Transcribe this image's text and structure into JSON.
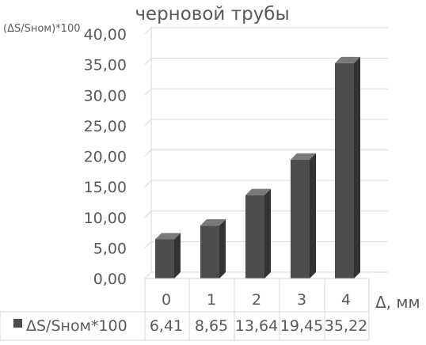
{
  "chart_data": {
    "type": "bar",
    "title": "черновой трубы",
    "ylabel": "(ΔS/Sном)*100",
    "xlabel": "Δ, мм",
    "categories": [
      "0",
      "1",
      "2",
      "3",
      "4"
    ],
    "series": [
      {
        "name": "ΔS/Sном*100",
        "values": [
          6.41,
          8.65,
          13.64,
          19.45,
          35.22
        ]
      }
    ],
    "value_labels": [
      "6,41",
      "8,65",
      "13,64",
      "19,45",
      "35,22"
    ],
    "yticks": [
      "0,00",
      "5,00",
      "10,00",
      "15,00",
      "20,00",
      "25,00",
      "30,00",
      "35,00",
      "40,00"
    ],
    "ylim": [
      0,
      40
    ],
    "grid": true,
    "legend": "data-table-left",
    "bar_color": "#4d4d4d",
    "bar_top_color": "#7a7a7a",
    "bar_side_color": "#333333",
    "grid_color": "#d9d9d9"
  }
}
